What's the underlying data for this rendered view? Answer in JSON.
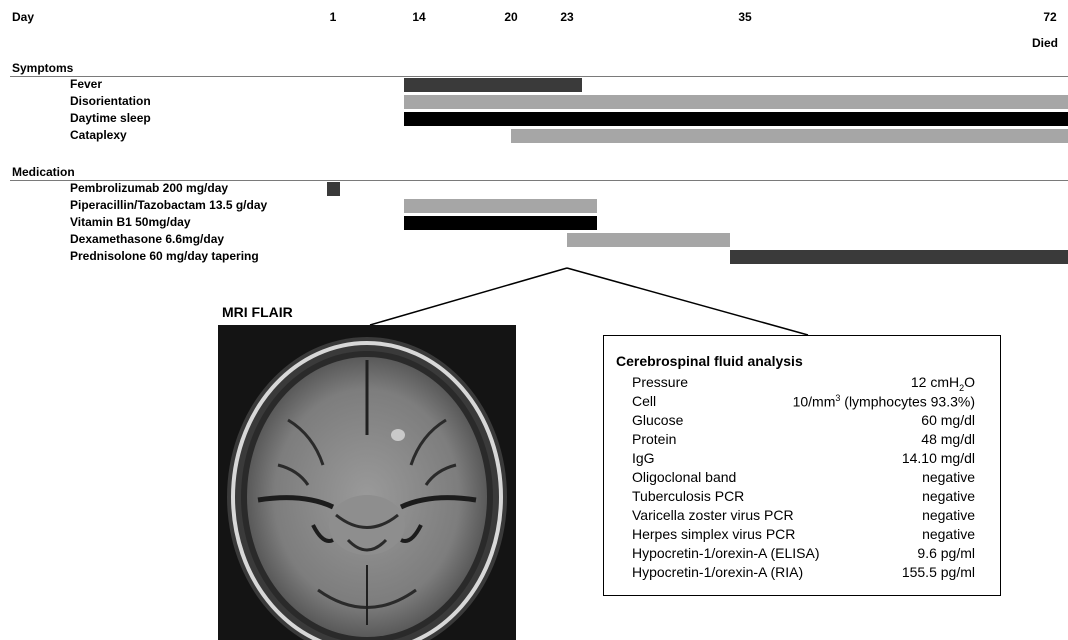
{
  "header": {
    "day_label": "Day",
    "died_label": "Died"
  },
  "days": [
    {
      "label": "1",
      "value": 1
    },
    {
      "label": "14",
      "value": 14
    },
    {
      "label": "20",
      "value": 20
    },
    {
      "label": "23",
      "value": 23
    },
    {
      "label": "35",
      "value": 35
    },
    {
      "label": "72",
      "value": 72
    }
  ],
  "symptoms": {
    "title": "Symptoms",
    "rows": [
      {
        "label": "Fever",
        "start": 14,
        "end": 24,
        "color": "#3a3a3a"
      },
      {
        "label": "Disorientation",
        "start": 14,
        "end": 72,
        "color": "#a6a6a6"
      },
      {
        "label": "Daytime sleep",
        "start": 14,
        "end": 72,
        "color": "#000000"
      },
      {
        "label": "Cataplexy",
        "start": 20,
        "end": 72,
        "color": "#a6a6a6"
      }
    ]
  },
  "medication": {
    "title": "Medication",
    "rows": [
      {
        "label": "Pembrolizumab 200 mg/day",
        "start": 0.5,
        "end": 2,
        "color": "#3a3a3a"
      },
      {
        "label": "Piperacillin/Tazobactam 13.5 g/day",
        "start": 14,
        "end": 25,
        "color": "#a6a6a6"
      },
      {
        "label": "Vitamin B1 50mg/day",
        "start": 14,
        "end": 25,
        "color": "#000000"
      },
      {
        "label": "Dexamethasone 6.6mg/day",
        "start": 23,
        "end": 34,
        "color": "#a6a6a6"
      },
      {
        "label": "Prednisolone 60 mg/day  tapering",
        "start": 34,
        "end": 72,
        "color": "#3a3a3a"
      }
    ]
  },
  "mri": {
    "title": "MRI FLAIR"
  },
  "csf": {
    "title": "Cerebrospinal fluid analysis",
    "pressure": {
      "label": "Pressure",
      "value": "12 cmH",
      "sub": "2",
      "tail": "O"
    },
    "cell": {
      "label": "Cell",
      "value": "10/mm",
      "sup": "3",
      "tail": " (lymphocytes 93.3%)"
    },
    "rows": [
      {
        "label": "Glucose",
        "value": "60 mg/dl"
      },
      {
        "label": "Protein",
        "value": "48 mg/dl"
      },
      {
        "label": "IgG",
        "value": "14.10 mg/dl"
      },
      {
        "label": "Oligoclonal band",
        "value": "negative"
      },
      {
        "label": "Tuberculosis PCR",
        "value": "negative"
      },
      {
        "label": "Varicella zoster virus PCR",
        "value": "negative"
      },
      {
        "label": "Herpes simplex virus PCR",
        "value": "negative"
      },
      {
        "label": "Hypocretin-1/orexin-A (ELISA)",
        "value": "9.6 pg/ml"
      },
      {
        "label": "Hypocretin-1/orexin-A (RIA)",
        "value": "155.5 pg/ml"
      }
    ]
  }
}
